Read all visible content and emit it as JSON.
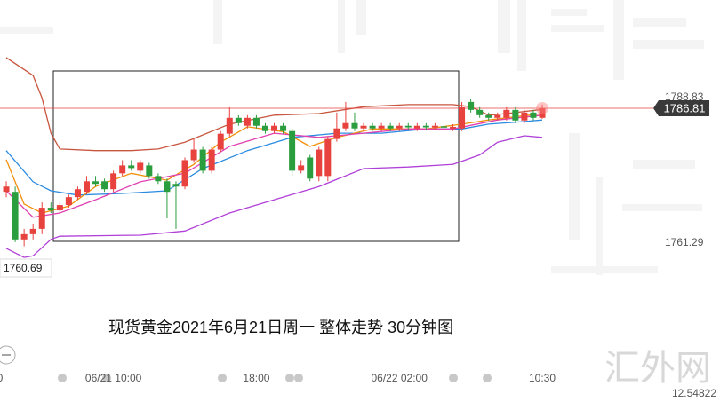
{
  "chart_data": {
    "type": "candlestick",
    "caption": "现货黄金2021年6月21日周一 整体走势 30分钟图",
    "watermark": "汇外网",
    "footer_value": "12.54822",
    "last_price": 1786.81,
    "low_label": "1760.69",
    "open": [
      1771,
      1771,
      1762,
      1763,
      1764,
      1768,
      1767.5,
      1768.5,
      1770,
      1771,
      1773,
      1773,
      1771.5,
      1774.5,
      1776,
      1775,
      1776,
      1774,
      1773,
      1772.5,
      1772,
      1777,
      1779,
      1775,
      1779,
      1782,
      1785,
      1783.5,
      1785,
      1783.5,
      1782.5,
      1783.5,
      1782.5,
      1775,
      1777.5,
      1774,
      1774,
      1781,
      1783,
      1784,
      1783,
      1783.5,
      1783,
      1783.5,
      1783,
      1783.5,
      1783,
      1783.5,
      1783.2,
      1783.4,
      1783,
      1783,
      1788,
      1786.5,
      1785.5,
      1785,
      1785,
      1786.5,
      1784.5,
      1786,
      1785
    ],
    "high": [
      1773,
      1772,
      1764,
      1765,
      1769,
      1769,
      1769,
      1770.5,
      1772,
      1774,
      1774,
      1773.5,
      1775,
      1777,
      1777,
      1777,
      1776.5,
      1774.5,
      1773.5,
      1773,
      1777.5,
      1781,
      1779.5,
      1779.5,
      1782.5,
      1787,
      1785.5,
      1785.5,
      1785.5,
      1784,
      1784,
      1784,
      1783,
      1777,
      1778,
      1779.5,
      1781.5,
      1786,
      1788,
      1786,
      1784,
      1784,
      1784,
      1784,
      1784,
      1784,
      1784,
      1784,
      1784,
      1784,
      1783.8,
      1788,
      1788.5,
      1787,
      1786,
      1786,
      1787,
      1787,
      1786.5,
      1786.5,
      1787.5
    ],
    "low": [
      1770,
      1761.5,
      1760.7,
      1762,
      1763,
      1767,
      1767,
      1768,
      1769.5,
      1770.5,
      1772,
      1771,
      1771,
      1774,
      1775,
      1774.5,
      1773.5,
      1772.5,
      1766,
      1764,
      1771.5,
      1776.5,
      1774.5,
      1774.5,
      1778.5,
      1781.5,
      1783.5,
      1783,
      1783,
      1782,
      1782,
      1782,
      1774,
      1774.5,
      1773,
      1773,
      1773,
      1780.5,
      1782.5,
      1782.5,
      1782.5,
      1782.5,
      1782.5,
      1782.5,
      1782.5,
      1782.8,
      1782.5,
      1782.8,
      1782.8,
      1782.8,
      1782.5,
      1782.5,
      1786,
      1785,
      1784.5,
      1784.5,
      1784.5,
      1784,
      1784,
      1784.5,
      1784.8
    ],
    "close": [
      1772,
      1762,
      1763,
      1764,
      1768,
      1767.5,
      1768.5,
      1770,
      1771.5,
      1773,
      1772.5,
      1771.5,
      1774.5,
      1776,
      1775.5,
      1776.5,
      1774,
      1773,
      1771,
      1772,
      1777,
      1779,
      1775,
      1779,
      1782,
      1785,
      1784,
      1785,
      1783.5,
      1782.5,
      1783.5,
      1782.5,
      1775,
      1776,
      1773.5,
      1779,
      1781,
      1783,
      1784,
      1783,
      1783.5,
      1783,
      1783.5,
      1783,
      1783.5,
      1783.2,
      1783.5,
      1783.2,
      1783.5,
      1783.2,
      1783.3,
      1787,
      1786.5,
      1785.5,
      1785,
      1785.5,
      1786.5,
      1784.5,
      1786,
      1785,
      1786.81
    ],
    "up_color": "#e8423f",
    "down_color": "#2a9d3e",
    "lines": [
      {
        "color": "#c8553d",
        "x": [
          0,
          3,
          4,
          5,
          6,
          10,
          14,
          17,
          20,
          25,
          30,
          35,
          40,
          45,
          50,
          52,
          54,
          56,
          60
        ],
        "values": [
          1796.4,
          1793,
          1788.8,
          1782.1,
          1779.1,
          1778.8,
          1778.8,
          1779.1,
          1780.4,
          1783.8,
          1785.5,
          1785.8,
          1787.1,
          1787.5,
          1787.5,
          1787.1,
          1785.5,
          1785.8,
          1786.6
        ]
      },
      {
        "color": "#b040d8",
        "x": [
          0,
          2,
          3,
          5,
          6,
          15,
          20,
          25,
          30,
          35,
          40,
          45,
          50,
          53,
          55,
          58,
          60
        ],
        "values": [
          1760.3,
          1758.6,
          1758.9,
          1762,
          1762.6,
          1762.8,
          1763.6,
          1767,
          1769.5,
          1772,
          1775.4,
          1775.7,
          1776.2,
          1778,
          1780.4,
          1781.6,
          1781.3
        ]
      },
      {
        "color": "#2b8be0",
        "x": [
          0,
          3,
          5,
          8,
          13,
          18,
          22,
          27,
          32,
          37,
          42,
          47,
          51,
          54,
          58,
          60
        ],
        "values": [
          1778.8,
          1772.9,
          1771.2,
          1770.4,
          1770.7,
          1771.2,
          1775.4,
          1778.8,
          1781.3,
          1782.1,
          1782.1,
          1782.9,
          1782.9,
          1783.8,
          1784.3,
          1784.6
        ]
      },
      {
        "color": "#f0900a",
        "x": [
          0,
          2,
          4,
          7,
          10,
          14,
          18,
          21,
          24,
          27,
          31,
          34,
          37,
          41,
          47,
          51,
          54,
          60
        ],
        "values": [
          1777.1,
          1768.7,
          1767,
          1768.3,
          1772,
          1774.5,
          1773.2,
          1776.2,
          1780.4,
          1783.3,
          1782.4,
          1779.6,
          1781.3,
          1782.9,
          1782.9,
          1783.8,
          1784.6,
          1785.8
        ]
      },
      {
        "color": "#e040b0",
        "x": [
          0,
          3,
          6,
          10,
          15,
          20,
          25,
          30,
          35,
          40,
          45,
          50,
          55,
          60
        ],
        "values": [
          1771.2,
          1766.2,
          1767,
          1769.5,
          1772.9,
          1774.5,
          1779.6,
          1782.1,
          1781.3,
          1782.1,
          1782.9,
          1782.9,
          1784.6,
          1785.5
        ]
      }
    ],
    "xlim": [
      -0.7,
      79.9
    ],
    "xticks": [
      {
        "value": -0.7,
        "label": "0"
      },
      {
        "value": 12,
        "label": "06/21 10:00"
      },
      {
        "value": 28,
        "label": "18:00"
      },
      {
        "value": 44,
        "label": "06/22 02:00"
      },
      {
        "value": 60,
        "label": "10:30"
      }
    ],
    "ylim": [
      1731.25,
      1807.29
    ],
    "yticks": [
      1788.83,
      1761.29
    ],
    "grid": false
  }
}
